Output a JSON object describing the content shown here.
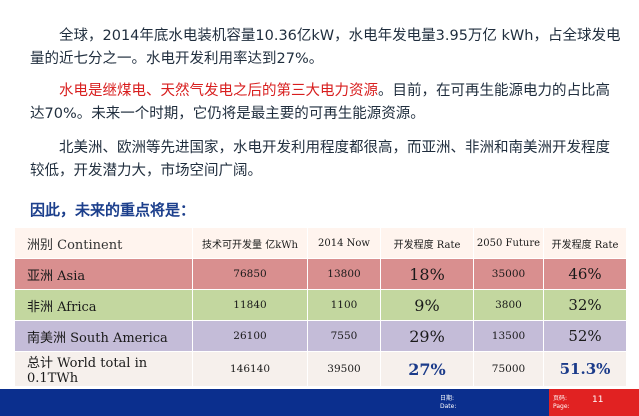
{
  "paragraphs": {
    "p1": "全球，2014年底水电装机容量10.36亿kW，水电年发电量3.95万亿 kWh，占全球发电量的近七分之一。水电开发利用率达到27%。",
    "p2_red": "水电是继煤电、天然气发电之后的第三大电力资源",
    "p2_rest": "。目前，在可再生能源电力的占比高达70%。未来一个时期，它仍将是最主要的可再生能源资源。",
    "p3": "北美洲、欧洲等先进国家，水电开发利用程度都很高，而亚洲、非洲和南美洲开发程度较低，开发潜力大，市场空间广阔。"
  },
  "heading": "因此，未来的重点将是：",
  "table": {
    "headers": [
      "洲别 Continent",
      "技术可开发量 亿kWh",
      "2014 Now",
      "开发程度 Rate",
      "2050 Future",
      "开发程度 Rate"
    ],
    "rows": [
      {
        "continent": "亚洲 Asia",
        "potential": "76850",
        "now": "13800",
        "rate_now": "18%",
        "future": "35000",
        "rate_future": "46%"
      },
      {
        "continent": "非洲 Africa",
        "potential": "11840",
        "now": "1100",
        "rate_now": "9%",
        "future": "3800",
        "rate_future": "32%"
      },
      {
        "continent": "南美洲 South America",
        "potential": "26100",
        "now": "7550",
        "rate_now": "29%",
        "future": "13500",
        "rate_future": "52%"
      },
      {
        "continent": "总计 World total in 0.1TWh",
        "potential": "146140",
        "now": "39500",
        "rate_now": "27%",
        "future": "75000",
        "rate_future": "51.3%"
      }
    ],
    "row_colors": [
      "#d98f8f",
      "#c3d79f",
      "#c4bcd8",
      "#f6f0ec"
    ]
  },
  "footer": {
    "date_cn": "日期:",
    "date_en": "Date:",
    "page_cn": "页码:",
    "page_en": "Page:",
    "page_number": "11"
  },
  "colors": {
    "body_text": "#1f2d3d",
    "highlight_red": "#d81e1e",
    "heading_blue": "#1c3f8c",
    "footer_blue": "#0b2f8e",
    "footer_red": "#e12222"
  }
}
